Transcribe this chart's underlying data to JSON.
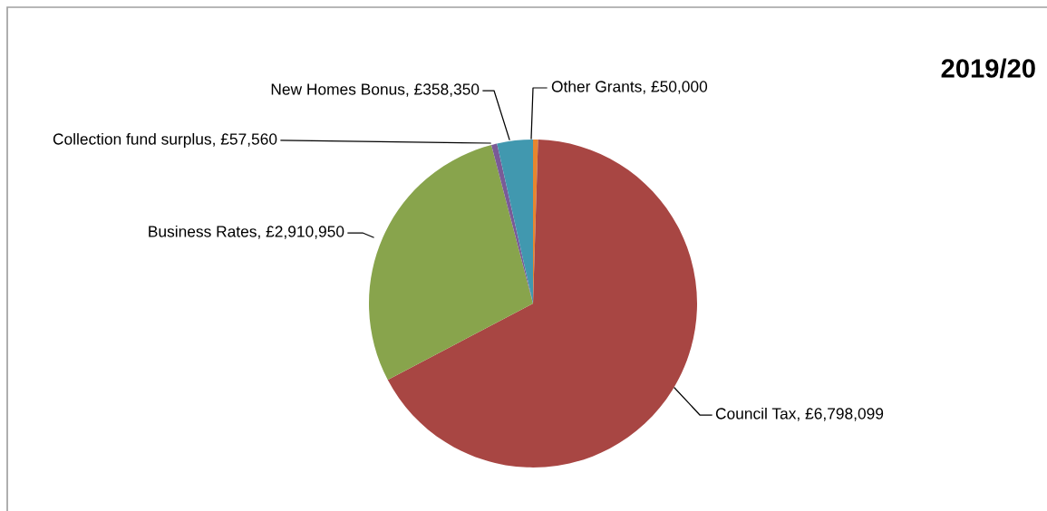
{
  "chart_data": {
    "type": "pie",
    "title": "2019/20",
    "categories": [
      "Other Grants",
      "Council Tax",
      "Business Rates",
      "Collection fund surplus",
      "New Homes Bonus"
    ],
    "values": [
      50000,
      6798099,
      2910950,
      57560,
      358350
    ],
    "value_labels": [
      "£50,000",
      "£6,798,099",
      "£2,910,950",
      "£57,560",
      "£358,350"
    ],
    "colors": [
      "#e8852e",
      "#a84643",
      "#88a44c",
      "#7a5b97",
      "#4198af"
    ],
    "legend": false
  }
}
